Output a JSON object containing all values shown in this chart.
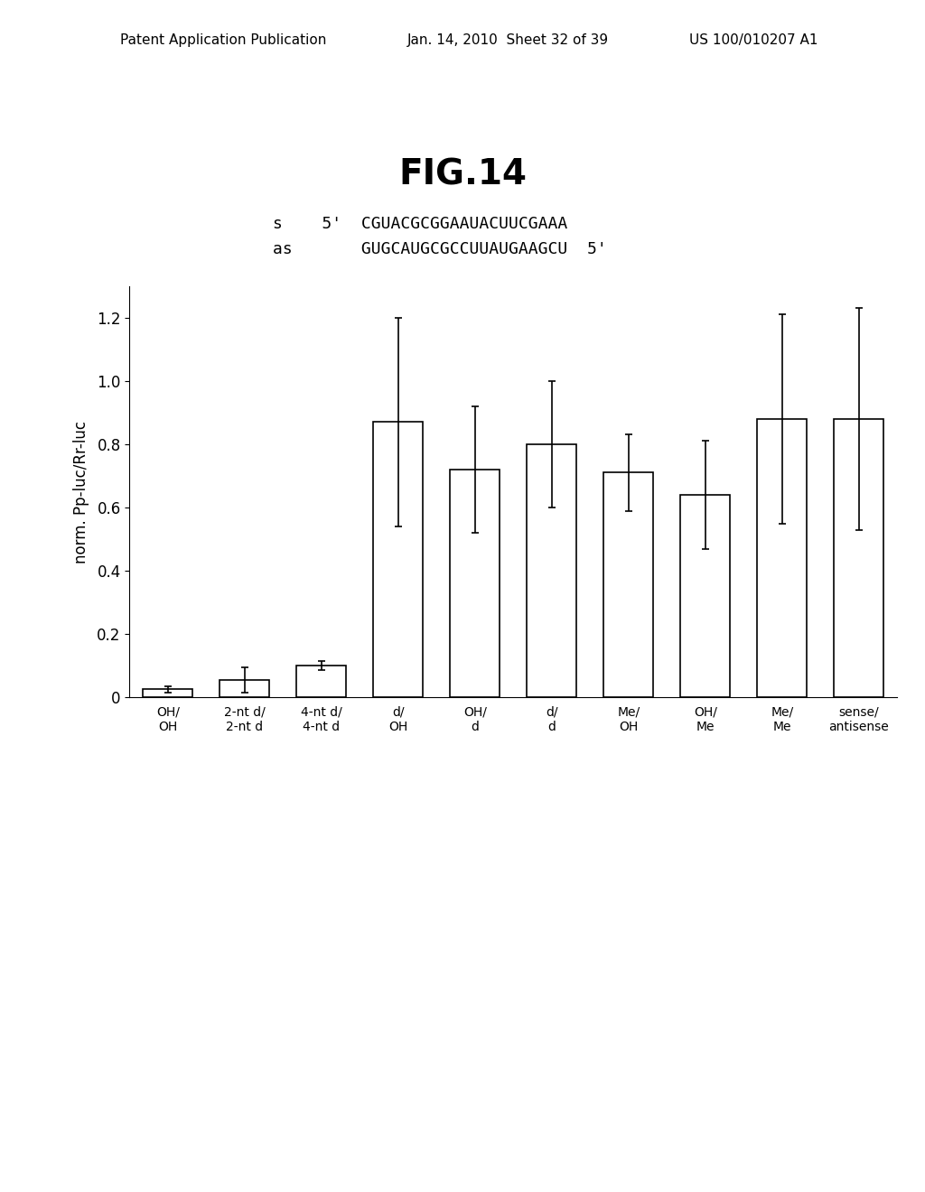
{
  "title": "FIG.14",
  "bar_values": [
    0.025,
    0.055,
    0.1,
    0.87,
    0.72,
    0.8,
    0.71,
    0.64,
    0.88,
    0.88
  ],
  "bar_errors": [
    0.01,
    0.04,
    0.015,
    0.33,
    0.2,
    0.2,
    0.12,
    0.17,
    0.33,
    0.35
  ],
  "categories": [
    "OH/\nOH",
    "2-nt d/\n2-nt d",
    "4-nt d/\n4-nt d",
    "d/\nOH",
    "OH/\nd",
    "d/\nd",
    "Me/\nOH",
    "OH/\nMe",
    "Me/\nMe",
    "sense/\nantisense"
  ],
  "ylabel": "norm. Pp-luc/Rr-luc",
  "ylim": [
    0,
    1.3
  ],
  "yticks": [
    0,
    0.2,
    0.4,
    0.6,
    0.8,
    1.0,
    1.2
  ],
  "background_color": "#ffffff",
  "bar_color": "#ffffff",
  "bar_edge_color": "#000000",
  "error_color": "#000000",
  "header_left": "Patent Application Publication",
  "header_mid": "Jan. 14, 2010  Sheet 32 of 39",
  "header_right": "US 100/010207 A1",
  "fig_label": "FIG.14",
  "seq_s": "s    5'  CGUACGCGGAAUACUUCGAAA",
  "seq_as": "as       GUGCAUGCGCCUUAUGAAGCU  5'"
}
